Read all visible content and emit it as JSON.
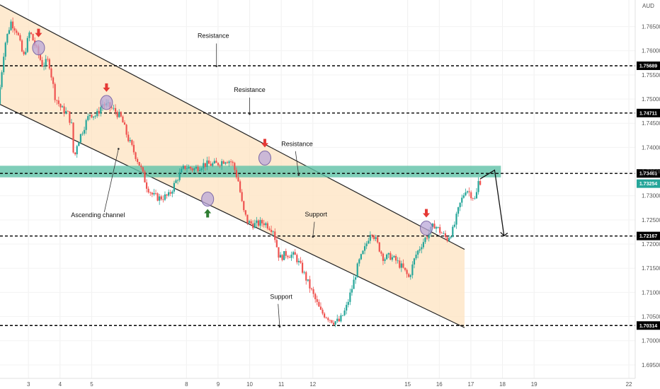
{
  "chart_data": {
    "type": "candlestick",
    "currency_label": "AUD",
    "y_ticks": [
      "1.76500",
      "1.76000",
      "1.75500",
      "1.75000",
      "1.74500",
      "1.74000",
      "1.73500",
      "1.73000",
      "1.72500",
      "1.72000",
      "1.71500",
      "1.71000",
      "1.70500",
      "1.70000",
      "1.69500"
    ],
    "x_ticks": [
      "3",
      "4",
      "5",
      "8",
      "9",
      "10",
      "11",
      "12",
      "15",
      "16",
      "17",
      "18",
      "19",
      "22"
    ],
    "ylim": [
      1.6922,
      1.7705
    ],
    "xlim": [
      2.1,
      22.2
    ],
    "grid": true,
    "levels": [
      {
        "value": 1.75689,
        "label": "1.75689",
        "color": "#000000"
      },
      {
        "value": 1.74711,
        "label": "1.74711",
        "color": "#000000"
      },
      {
        "value": 1.73461,
        "label": "1.73461",
        "color": "#000000"
      },
      {
        "value": 1.72167,
        "label": "1.72167",
        "color": "#000000"
      },
      {
        "value": 1.70314,
        "label": "1.70314",
        "color": "#000000"
      }
    ],
    "last_price": {
      "value": 1.7325,
      "label": "1.73254",
      "color": "#26a69a"
    },
    "zone": {
      "low": 1.7338,
      "high": 1.7362,
      "color": "#5fc2a8"
    },
    "channel": {
      "upper": [
        [
          2.1,
          1.7695
        ],
        [
          16.8,
          1.7189
        ]
      ],
      "lower": [
        [
          2.1,
          1.7489
        ],
        [
          16.8,
          1.7027
        ]
      ],
      "fill_color": "#fde3c0"
    },
    "annotations": [
      {
        "text": "Resistance",
        "x": 8.85,
        "y": 1.7627
      },
      {
        "text": "Resistance",
        "x": 10.0,
        "y": 1.7515
      },
      {
        "text": "Resistance",
        "x": 11.5,
        "y": 1.7403
      },
      {
        "text": "Ascending channel",
        "x": 5.2,
        "y": 1.7256
      },
      {
        "text": "Support",
        "x": 12.1,
        "y": 1.7257
      },
      {
        "text": "Support",
        "x": 11.0,
        "y": 1.7087
      }
    ],
    "pointer_lines": [
      {
        "x1": 8.95,
        "y1": 1.7615,
        "x2": 8.95,
        "y2": 1.7568
      },
      {
        "x1": 10.0,
        "y1": 1.7503,
        "x2": 10.0,
        "y2": 1.7469
      },
      {
        "x1": 11.45,
        "y1": 1.7392,
        "x2": 11.55,
        "y2": 1.7343
      },
      {
        "x1": 5.4,
        "y1": 1.7266,
        "x2": 5.85,
        "y2": 1.7397
      },
      {
        "x1": 12.05,
        "y1": 1.7246,
        "x2": 12.0,
        "y2": 1.7215
      },
      {
        "x1": 10.9,
        "y1": 1.7076,
        "x2": 10.95,
        "y2": 1.7029
      }
    ],
    "reversal_markers": [
      {
        "x": 3.32,
        "y": 1.7606,
        "arrow": "down"
      },
      {
        "x": 5.47,
        "y": 1.7493,
        "arrow": "down"
      },
      {
        "x": 10.48,
        "y": 1.7378,
        "arrow": "down"
      },
      {
        "x": 15.59,
        "y": 1.7233,
        "arrow": "down"
      },
      {
        "x": 8.67,
        "y": 1.7293,
        "arrow": "up"
      }
    ],
    "projection": [
      [
        17.3,
        1.7335
      ],
      [
        17.75,
        1.7353
      ],
      [
        18.05,
        1.7217
      ]
    ],
    "colors": {
      "up": "#26a69a",
      "down": "#ef5350",
      "pointer": "#333333",
      "marker_fill": "#b9a7d8",
      "marker_stroke": "#7b68a6"
    },
    "price_path": [
      [
        2.1,
        1.749
      ],
      [
        2.3,
        1.761
      ],
      [
        2.5,
        1.766
      ],
      [
        2.7,
        1.764
      ],
      [
        2.9,
        1.7585
      ],
      [
        3.1,
        1.764
      ],
      [
        3.3,
        1.7605
      ],
      [
        3.5,
        1.757
      ],
      [
        3.7,
        1.758
      ],
      [
        3.9,
        1.7505
      ],
      [
        4.1,
        1.748
      ],
      [
        4.3,
        1.747
      ],
      [
        4.45,
        1.744
      ],
      [
        4.5,
        1.735
      ],
      [
        4.55,
        1.74
      ],
      [
        4.8,
        1.744
      ],
      [
        5.0,
        1.747
      ],
      [
        5.2,
        1.7465
      ],
      [
        5.4,
        1.749
      ],
      [
        5.6,
        1.7485
      ],
      [
        5.8,
        1.7475
      ],
      [
        6.0,
        1.746
      ],
      [
        6.2,
        1.742
      ],
      [
        6.4,
        1.739
      ],
      [
        6.6,
        1.736
      ],
      [
        6.8,
        1.732
      ],
      [
        7.0,
        1.73
      ],
      [
        7.2,
        1.7295
      ],
      [
        7.5,
        1.73
      ],
      [
        7.8,
        1.734
      ],
      [
        8.0,
        1.736
      ],
      [
        8.3,
        1.7355
      ],
      [
        8.6,
        1.7365
      ],
      [
        9.0,
        1.7365
      ],
      [
        9.3,
        1.7375
      ],
      [
        9.5,
        1.737
      ],
      [
        9.7,
        1.733
      ],
      [
        9.85,
        1.727
      ],
      [
        10.0,
        1.7245
      ],
      [
        10.2,
        1.724
      ],
      [
        10.5,
        1.7245
      ],
      [
        10.8,
        1.723
      ],
      [
        11.0,
        1.717
      ],
      [
        11.2,
        1.718
      ],
      [
        11.5,
        1.7175
      ],
      [
        11.7,
        1.715
      ],
      [
        11.9,
        1.712
      ],
      [
        12.1,
        1.709
      ],
      [
        12.3,
        1.706
      ],
      [
        12.5,
        1.705
      ],
      [
        12.7,
        1.704
      ],
      [
        12.9,
        1.704
      ],
      [
        13.1,
        1.7065
      ],
      [
        13.3,
        1.711
      ],
      [
        13.5,
        1.716
      ],
      [
        13.7,
        1.719
      ],
      [
        13.9,
        1.723
      ],
      [
        14.1,
        1.72
      ],
      [
        14.3,
        1.717
      ],
      [
        14.5,
        1.7175
      ],
      [
        14.7,
        1.7165
      ],
      [
        14.9,
        1.715
      ],
      [
        15.1,
        1.713
      ],
      [
        15.3,
        1.7175
      ],
      [
        15.5,
        1.72
      ],
      [
        15.7,
        1.722
      ],
      [
        15.9,
        1.724
      ],
      [
        16.1,
        1.7225
      ],
      [
        16.3,
        1.721
      ],
      [
        16.5,
        1.723
      ],
      [
        16.7,
        1.728
      ],
      [
        16.9,
        1.7315
      ],
      [
        17.1,
        1.73
      ],
      [
        17.2,
        1.729
      ],
      [
        17.3,
        1.733
      ]
    ]
  }
}
